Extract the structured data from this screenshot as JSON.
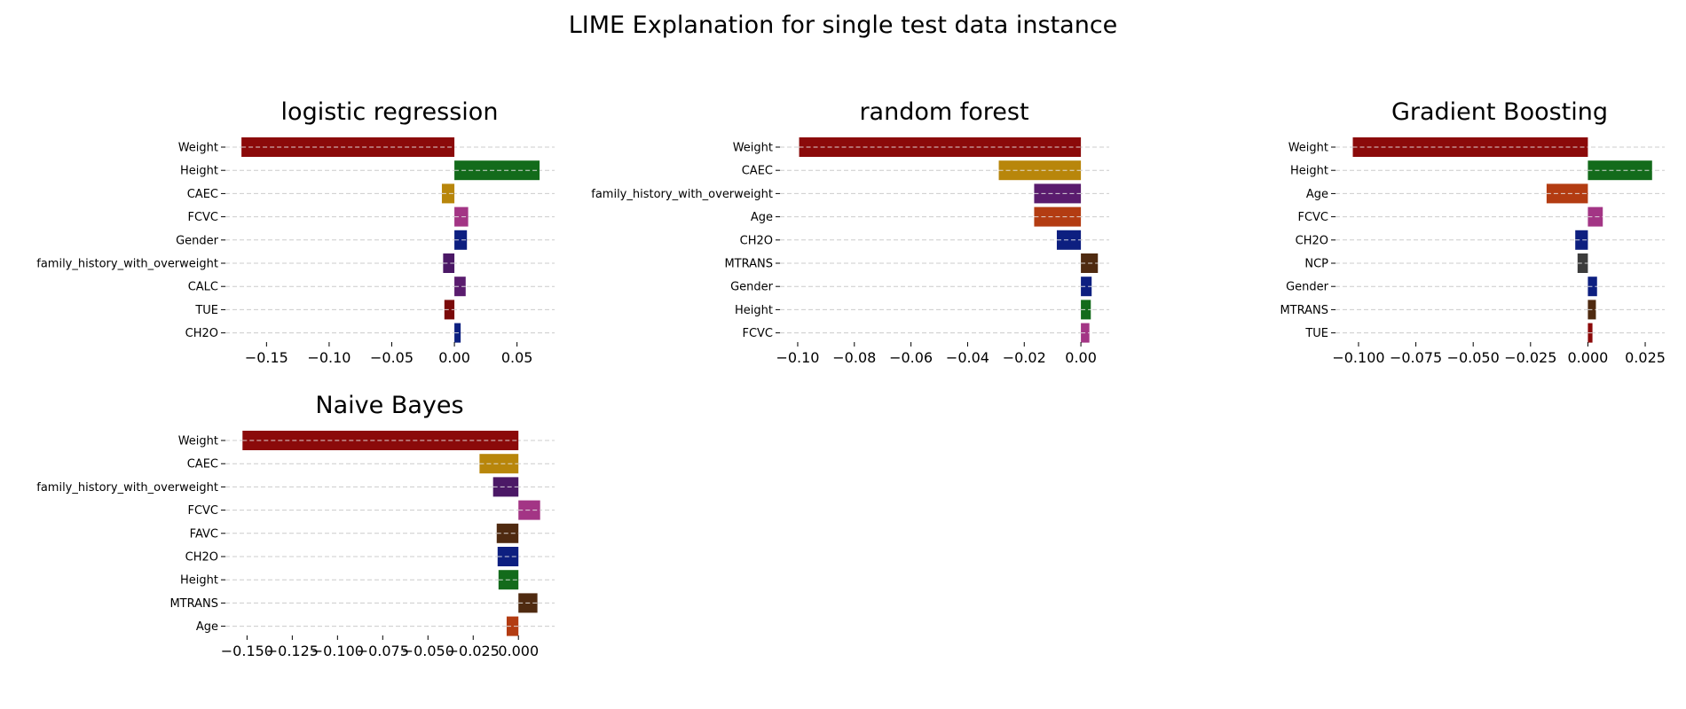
{
  "figure": {
    "title": "LIME Explanation for single test data instance"
  },
  "chart_data": [
    {
      "type": "bar",
      "orientation": "horizontal",
      "title": "logistic regression",
      "categories": [
        "Weight",
        "Height",
        "CAEC",
        "FCVC",
        "Gender",
        "family_history_with_overweight",
        "CALC",
        "TUE",
        "CH2O"
      ],
      "values": [
        -0.17,
        0.068,
        -0.01,
        0.011,
        0.01,
        -0.009,
        0.009,
        -0.008,
        0.005
      ],
      "colors": [
        "#8b0a0a",
        "#136b1b",
        "#b8860b",
        "#a33585",
        "#0d1f80",
        "#4b1866",
        "#5a1c6e",
        "#7a0a0a",
        "#0d2080"
      ],
      "xlim": [
        -0.18,
        0.08
      ],
      "xticks": [
        -0.15,
        -0.1,
        -0.05,
        0.0,
        0.05
      ],
      "xtick_labels": [
        "−0.15",
        "−0.10",
        "−0.05",
        "0.00",
        "0.05"
      ],
      "grid": "y-dashed"
    },
    {
      "type": "bar",
      "orientation": "horizontal",
      "title": "random forest",
      "categories": [
        "Weight",
        "CAEC",
        "family_history_with_overweight",
        "Age",
        "CH2O",
        "MTRANS",
        "Gender",
        "Height",
        "FCVC"
      ],
      "values": [
        -0.0995,
        -0.029,
        -0.0165,
        -0.0165,
        -0.0085,
        0.006,
        0.0038,
        0.0035,
        0.003
      ],
      "colors": [
        "#8b0a0a",
        "#b8860b",
        "#5a1c6e",
        "#b33c12",
        "#0d1f80",
        "#4f2a10",
        "#0d1f80",
        "#136b1b",
        "#a33585"
      ],
      "xlim": [
        -0.105,
        0.01
      ],
      "xticks": [
        -0.1,
        -0.08,
        -0.06,
        -0.04,
        -0.02,
        0.0
      ],
      "xtick_labels": [
        "−0.10",
        "−0.08",
        "−0.06",
        "−0.04",
        "−0.02",
        "0.00"
      ],
      "grid": "y-dashed"
    },
    {
      "type": "bar",
      "orientation": "horizontal",
      "title": "Gradient Boosting",
      "categories": [
        "Weight",
        "Height",
        "Age",
        "FCVC",
        "CH2O",
        "NCP",
        "Gender",
        "MTRANS",
        "TUE"
      ],
      "values": [
        -0.1025,
        0.028,
        -0.018,
        0.0065,
        -0.0055,
        -0.0045,
        0.004,
        0.0035,
        0.002
      ],
      "colors": [
        "#8b0a0a",
        "#136b1b",
        "#b33c12",
        "#a33585",
        "#0d1f80",
        "#3c3c3c",
        "#0d1f80",
        "#4f2a10",
        "#8b0a0a"
      ],
      "xlim": [
        -0.1085,
        0.0335
      ],
      "xticks": [
        -0.1,
        -0.075,
        -0.05,
        -0.025,
        0.0,
        0.025
      ],
      "xtick_labels": [
        "−0.100",
        "−0.075",
        "−0.050",
        "−0.025",
        "0.000",
        "0.025"
      ],
      "grid": "y-dashed"
    },
    {
      "type": "bar",
      "orientation": "horizontal",
      "title": "Naive Bayes",
      "categories": [
        "Weight",
        "CAEC",
        "family_history_with_overweight",
        "FCVC",
        "FAVC",
        "CH2O",
        "Height",
        "MTRANS",
        "Age"
      ],
      "values": [
        -0.1525,
        -0.0215,
        -0.014,
        0.012,
        -0.012,
        -0.0115,
        -0.011,
        0.0105,
        -0.0065
      ],
      "colors": [
        "#8b0a0a",
        "#b8860b",
        "#4b1866",
        "#a33585",
        "#4f2a10",
        "#0d1f80",
        "#136b1b",
        "#4f2a10",
        "#b33c12"
      ],
      "xlim": [
        -0.16,
        0.02
      ],
      "xticks": [
        -0.15,
        -0.125,
        -0.1,
        -0.075,
        -0.05,
        -0.025,
        0.0
      ],
      "xtick_labels": [
        "−0.150",
        "−0.125",
        "−0.100",
        "−0.075",
        "−0.050",
        "−0.025",
        "0.000"
      ],
      "grid": "y-dashed"
    }
  ]
}
